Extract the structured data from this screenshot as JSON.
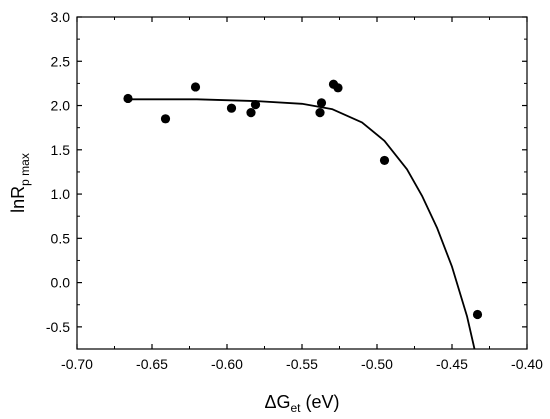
{
  "chart_data": {
    "type": "scatter",
    "xlabel": {
      "main": "ΔG",
      "sub": "et",
      "tail": " (eV)"
    },
    "ylabel": {
      "main": "lnR",
      "sub": "p max"
    },
    "xlim": [
      -0.7,
      -0.4
    ],
    "ylim": [
      -0.75,
      3.0
    ],
    "xticks": [
      -0.7,
      -0.65,
      -0.6,
      -0.55,
      -0.5,
      -0.45,
      -0.4
    ],
    "xtick_labels": [
      "-0.70",
      "-0.65",
      "-0.60",
      "-0.55",
      "-0.50",
      "-0.45",
      "-0.40"
    ],
    "yticks": [
      -0.5,
      0.0,
      0.5,
      1.0,
      1.5,
      2.0,
      2.5,
      3.0
    ],
    "ytick_labels": [
      "-0.5",
      "0.0",
      "0.5",
      "1.0",
      "1.5",
      "2.0",
      "2.5",
      "3.0"
    ],
    "points": [
      {
        "x": -0.666,
        "y": 2.08
      },
      {
        "x": -0.641,
        "y": 1.85
      },
      {
        "x": -0.621,
        "y": 2.21
      },
      {
        "x": -0.597,
        "y": 1.97
      },
      {
        "x": -0.584,
        "y": 1.92
      },
      {
        "x": -0.581,
        "y": 2.01
      },
      {
        "x": -0.538,
        "y": 1.92
      },
      {
        "x": -0.537,
        "y": 2.03
      },
      {
        "x": -0.529,
        "y": 2.24
      },
      {
        "x": -0.526,
        "y": 2.2
      },
      {
        "x": -0.495,
        "y": 1.38
      },
      {
        "x": -0.433,
        "y": -0.36
      }
    ],
    "fit_curve": [
      {
        "x": -0.667,
        "y": 2.07
      },
      {
        "x": -0.62,
        "y": 2.07
      },
      {
        "x": -0.58,
        "y": 2.05
      },
      {
        "x": -0.55,
        "y": 2.02
      },
      {
        "x": -0.53,
        "y": 1.96
      },
      {
        "x": -0.51,
        "y": 1.81
      },
      {
        "x": -0.495,
        "y": 1.6
      },
      {
        "x": -0.48,
        "y": 1.28
      },
      {
        "x": -0.47,
        "y": 0.98
      },
      {
        "x": -0.46,
        "y": 0.62
      },
      {
        "x": -0.45,
        "y": 0.18
      },
      {
        "x": -0.44,
        "y": -0.38
      },
      {
        "x": -0.435,
        "y": -0.75
      }
    ],
    "grid": false,
    "legend": "none",
    "colors": {
      "points": "#000000",
      "line": "#000000",
      "axes": "#000000"
    }
  }
}
